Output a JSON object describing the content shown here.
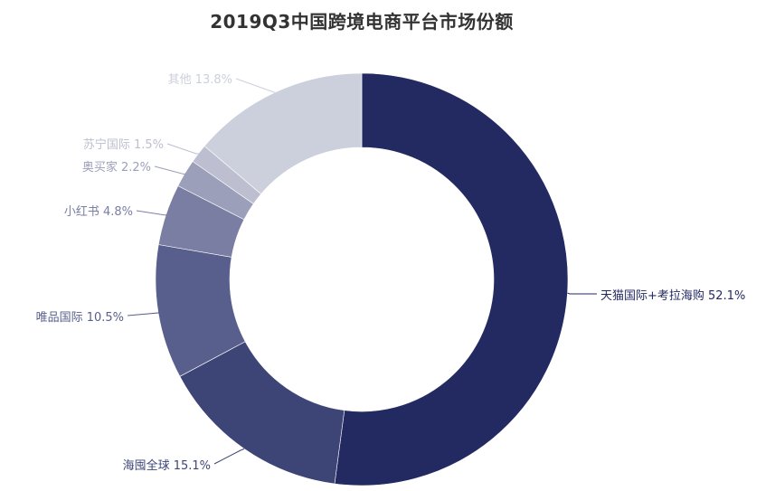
{
  "title": "2019Q3中国跨境电商平台市场份额",
  "chart_data": {
    "type": "pie",
    "subtype": "donut",
    "title": "2019Q3中国跨境电商平台市场份额",
    "unit": "%",
    "start_angle_deg": 90,
    "clockwise": true,
    "legend": "none (labels with leader lines)",
    "categories": [
      "天猫国际+考拉海购",
      "海囤全球",
      "唯品国际",
      "小红书",
      "奥买家",
      "苏宁国际",
      "其他"
    ],
    "values": [
      52.1,
      15.1,
      10.5,
      4.8,
      2.2,
      1.5,
      13.8
    ],
    "labels": [
      "天猫国际+考拉海购 52.1%",
      "海囤全球 15.1%",
      "唯品国际 10.5%",
      "小红书 4.8%",
      "奥买家 2.2%",
      "苏宁国际 1.5%",
      "其他 13.8%"
    ],
    "colors": [
      "#232a62",
      "#3d4577",
      "#585f8c",
      "#7a7ea2",
      "#9c9fb9",
      "#bdbfd0",
      "#cccfdc"
    ],
    "label_colors": [
      "#232a62",
      "#3d4577",
      "#585f8c",
      "#7a7ea2",
      "#9c9fb9",
      "#bdbfd0",
      "#cccfdc"
    ]
  }
}
